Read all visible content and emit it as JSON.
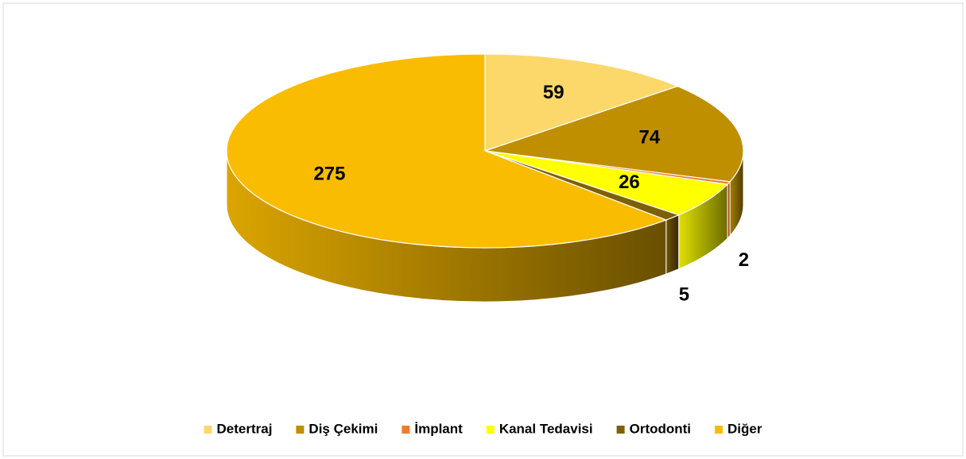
{
  "chart_data": {
    "type": "pie",
    "categories": [
      "Detertraj",
      "Diş Çekimi",
      "İmplant",
      "Kanal Tedavisi",
      "Ortodonti",
      "Diğer"
    ],
    "values": [
      59,
      74,
      2,
      26,
      5,
      275
    ],
    "colors": [
      "#fcd86a",
      "#bf8f00",
      "#ed7d31",
      "#ffff00",
      "#7f6000",
      "#f9bc00"
    ],
    "legend": "bottom"
  }
}
